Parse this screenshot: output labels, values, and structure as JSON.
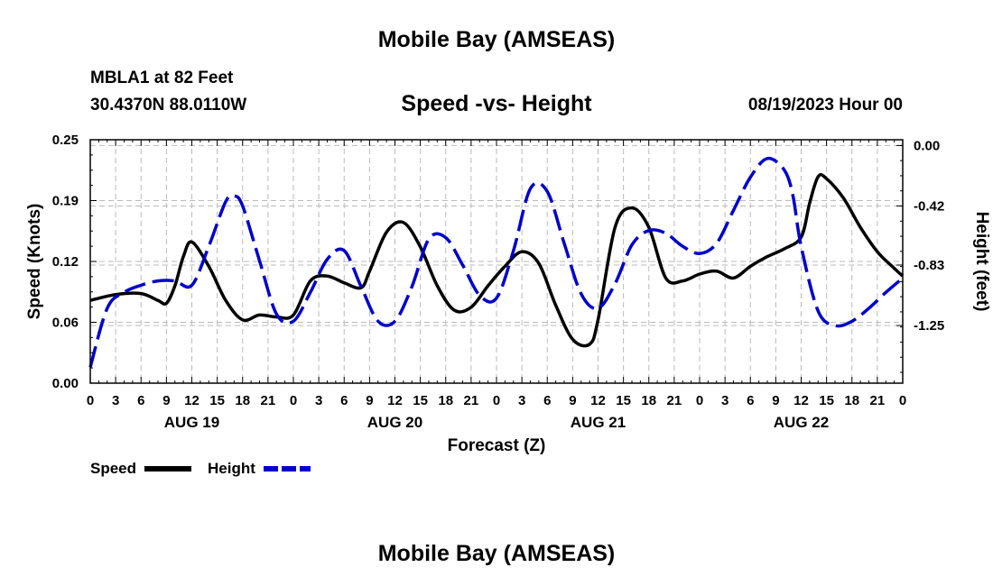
{
  "header": {
    "title": "Mobile Bay (AMSEAS)",
    "station": "MBLA1 at 82 Feet",
    "coordinates": "30.4370N  88.0110W",
    "chart_title": "Speed -vs- Height",
    "run_datetime": "08/19/2023 Hour 00"
  },
  "footer": {
    "title": "Mobile Bay (AMSEAS)"
  },
  "chart_data": {
    "type": "line",
    "title": "Speed -vs- Height",
    "xlabel": "Forecast (Z)",
    "ylabel": "Speed (Knots)",
    "y2label": "Height (feet)",
    "xlim": [
      0,
      96
    ],
    "ylim": [
      0,
      0.25
    ],
    "y2lim": [
      -1.65,
      0.04
    ],
    "y_ticks": [
      "0.00",
      "0.06",
      "0.12",
      "0.19",
      "0.25"
    ],
    "y_tick_values": [
      0,
      0.0625,
      0.125,
      0.1875,
      0.25
    ],
    "y2_ticks": [
      "0.00",
      "-0.42",
      "-0.83",
      "-1.25"
    ],
    "y2_tick_values": [
      0,
      -0.42,
      -0.83,
      -1.25
    ],
    "x_tick_labels": [
      "0",
      "3",
      "6",
      "9",
      "12",
      "15",
      "18",
      "21",
      "0",
      "3",
      "6",
      "9",
      "12",
      "15",
      "18",
      "21",
      "0",
      "3",
      "6",
      "9",
      "12",
      "15",
      "18",
      "21",
      "0",
      "3",
      "6",
      "9",
      "12",
      "15",
      "18",
      "21",
      "0"
    ],
    "date_labels": [
      {
        "label": "AUG 19",
        "hour": 12
      },
      {
        "label": "AUG 20",
        "hour": 36
      },
      {
        "label": "AUG 21",
        "hour": 60
      },
      {
        "label": "AUG 22",
        "hour": 84
      }
    ],
    "grid": true,
    "legend_position": "bottom-left",
    "series": [
      {
        "name": "Speed",
        "color": "#000000",
        "axis": "left",
        "x": [
          0,
          3,
          6,
          8,
          9,
          10,
          11,
          12,
          14,
          16,
          18,
          20,
          22,
          24,
          26,
          28,
          30,
          32,
          33,
          35,
          37,
          39,
          41,
          43,
          45,
          47,
          49,
          51,
          53,
          55,
          57,
          59,
          60,
          62,
          64,
          66,
          68,
          70,
          72,
          74,
          76,
          78,
          80,
          82,
          84,
          85,
          86,
          87,
          89,
          91,
          93,
          95,
          96
        ],
        "y": [
          0.085,
          0.091,
          0.092,
          0.085,
          0.082,
          0.1,
          0.13,
          0.145,
          0.12,
          0.085,
          0.065,
          0.07,
          0.068,
          0.07,
          0.105,
          0.11,
          0.103,
          0.098,
          0.115,
          0.155,
          0.165,
          0.14,
          0.1,
          0.075,
          0.078,
          0.1,
          0.12,
          0.135,
          0.123,
          0.08,
          0.045,
          0.04,
          0.065,
          0.16,
          0.18,
          0.16,
          0.108,
          0.105,
          0.112,
          0.115,
          0.108,
          0.12,
          0.13,
          0.138,
          0.15,
          0.185,
          0.212,
          0.21,
          0.19,
          0.16,
          0.135,
          0.118,
          0.11
        ]
      },
      {
        "name": "Height",
        "color": "#0000cc",
        "axis": "right",
        "x": [
          0,
          2,
          4,
          6,
          8,
          10,
          12,
          14,
          16,
          17,
          18,
          20,
          22,
          24,
          26,
          28,
          30,
          32,
          34,
          36,
          38,
          40,
          42,
          44,
          46,
          48,
          50,
          52,
          54,
          56,
          58,
          60,
          62,
          64,
          66,
          68,
          70,
          72,
          74,
          76,
          78,
          80,
          82,
          83,
          84,
          86,
          88,
          90,
          92,
          94,
          96
        ],
        "y": [
          -1.54,
          -1.13,
          -1.02,
          -0.97,
          -0.94,
          -0.94,
          -0.97,
          -0.7,
          -0.39,
          -0.35,
          -0.42,
          -0.8,
          -1.17,
          -1.22,
          -1.02,
          -0.79,
          -0.73,
          -0.98,
          -1.22,
          -1.22,
          -0.98,
          -0.65,
          -0.64,
          -0.83,
          -1.04,
          -1.06,
          -0.73,
          -0.3,
          -0.32,
          -0.68,
          -1.03,
          -1.13,
          -0.96,
          -0.69,
          -0.59,
          -0.61,
          -0.7,
          -0.75,
          -0.68,
          -0.45,
          -0.22,
          -0.09,
          -0.17,
          -0.34,
          -0.7,
          -1.15,
          -1.25,
          -1.22,
          -1.13,
          -1.02,
          -0.92
        ]
      }
    ]
  }
}
